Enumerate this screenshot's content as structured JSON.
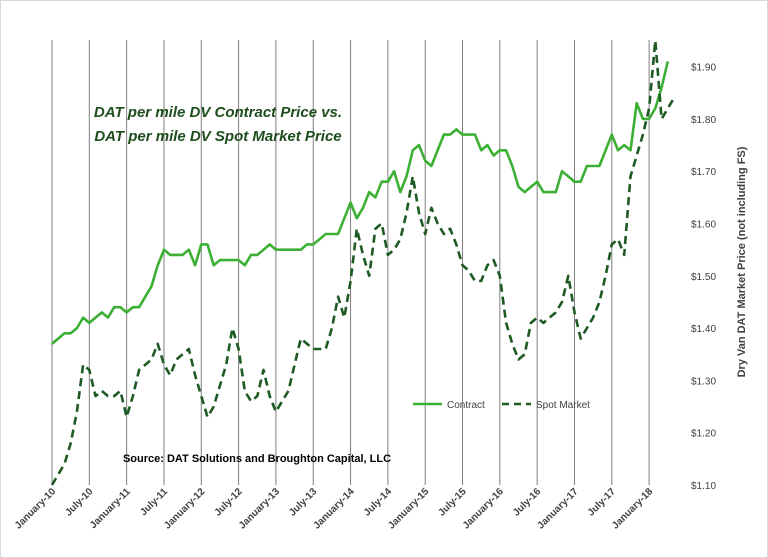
{
  "chart_data": {
    "type": "line",
    "title_lines": [
      "DAT per mile DV Contract Price vs.",
      "DAT per mile DV Spot Market Price"
    ],
    "ylabel": "Dry Van DAT Market Price (not including FS)",
    "source": "Source: DAT Solutions and Broughton Capital, LLC",
    "ylim": [
      1.1,
      1.95
    ],
    "y_ticks": [
      "$1.10",
      "$1.20",
      "$1.30",
      "$1.40",
      "$1.50",
      "$1.60",
      "$1.70",
      "$1.80",
      "$1.90"
    ],
    "x_tick_labels": [
      "January-10",
      "July-10",
      "January-11",
      "July-11",
      "January-12",
      "July-12",
      "January-13",
      "July-13",
      "January-14",
      "July-14",
      "January-15",
      "July-15",
      "January-16",
      "July-16",
      "January-17",
      "July-17",
      "January-18"
    ],
    "x_start": "January-10",
    "x_period": "month",
    "grid": "vertical",
    "legend_position": "right-middle",
    "colors": {
      "contract": "#3cb034",
      "spot": "#1e5a24",
      "grid": "#7f7f7f"
    },
    "series": [
      {
        "name": "Contract",
        "style": "solid",
        "values": [
          1.37,
          1.38,
          1.39,
          1.39,
          1.4,
          1.42,
          1.41,
          1.42,
          1.43,
          1.42,
          1.44,
          1.44,
          1.43,
          1.44,
          1.44,
          1.46,
          1.48,
          1.52,
          1.55,
          1.54,
          1.54,
          1.54,
          1.55,
          1.52,
          1.56,
          1.56,
          1.52,
          1.53,
          1.53,
          1.53,
          1.53,
          1.52,
          1.54,
          1.54,
          1.55,
          1.56,
          1.55,
          1.55,
          1.55,
          1.55,
          1.55,
          1.56,
          1.56,
          1.57,
          1.58,
          1.58,
          1.58,
          1.61,
          1.64,
          1.61,
          1.63,
          1.66,
          1.65,
          1.68,
          1.68,
          1.7,
          1.66,
          1.69,
          1.74,
          1.75,
          1.72,
          1.71,
          1.74,
          1.77,
          1.77,
          1.78,
          1.77,
          1.77,
          1.77,
          1.74,
          1.75,
          1.73,
          1.74,
          1.74,
          1.71,
          1.67,
          1.66,
          1.67,
          1.68,
          1.66,
          1.66,
          1.66,
          1.7,
          1.69,
          1.68,
          1.68,
          1.71,
          1.71,
          1.71,
          1.74,
          1.77,
          1.74,
          1.75,
          1.74,
          1.83,
          1.8,
          1.8,
          1.82,
          1.86,
          1.91
        ]
      },
      {
        "name": "Spot Market",
        "style": "dashed",
        "values": [
          1.1,
          1.12,
          1.14,
          1.18,
          1.24,
          1.33,
          1.32,
          1.27,
          1.28,
          1.27,
          1.27,
          1.28,
          1.23,
          1.27,
          1.32,
          1.33,
          1.34,
          1.37,
          1.33,
          1.31,
          1.34,
          1.35,
          1.36,
          1.31,
          1.27,
          1.23,
          1.25,
          1.29,
          1.33,
          1.4,
          1.36,
          1.28,
          1.26,
          1.27,
          1.32,
          1.27,
          1.24,
          1.26,
          1.28,
          1.33,
          1.38,
          1.37,
          1.36,
          1.36,
          1.36,
          1.4,
          1.46,
          1.42,
          1.49,
          1.59,
          1.54,
          1.5,
          1.59,
          1.6,
          1.54,
          1.55,
          1.57,
          1.62,
          1.69,
          1.62,
          1.58,
          1.63,
          1.6,
          1.58,
          1.59,
          1.56,
          1.52,
          1.51,
          1.49,
          1.49,
          1.52,
          1.53,
          1.5,
          1.41,
          1.37,
          1.34,
          1.35,
          1.41,
          1.42,
          1.41,
          1.42,
          1.43,
          1.45,
          1.5,
          1.43,
          1.38,
          1.4,
          1.42,
          1.45,
          1.5,
          1.56,
          1.57,
          1.54,
          1.69,
          1.73,
          1.77,
          1.82,
          1.95,
          1.8,
          1.82,
          1.84
        ]
      }
    ]
  }
}
